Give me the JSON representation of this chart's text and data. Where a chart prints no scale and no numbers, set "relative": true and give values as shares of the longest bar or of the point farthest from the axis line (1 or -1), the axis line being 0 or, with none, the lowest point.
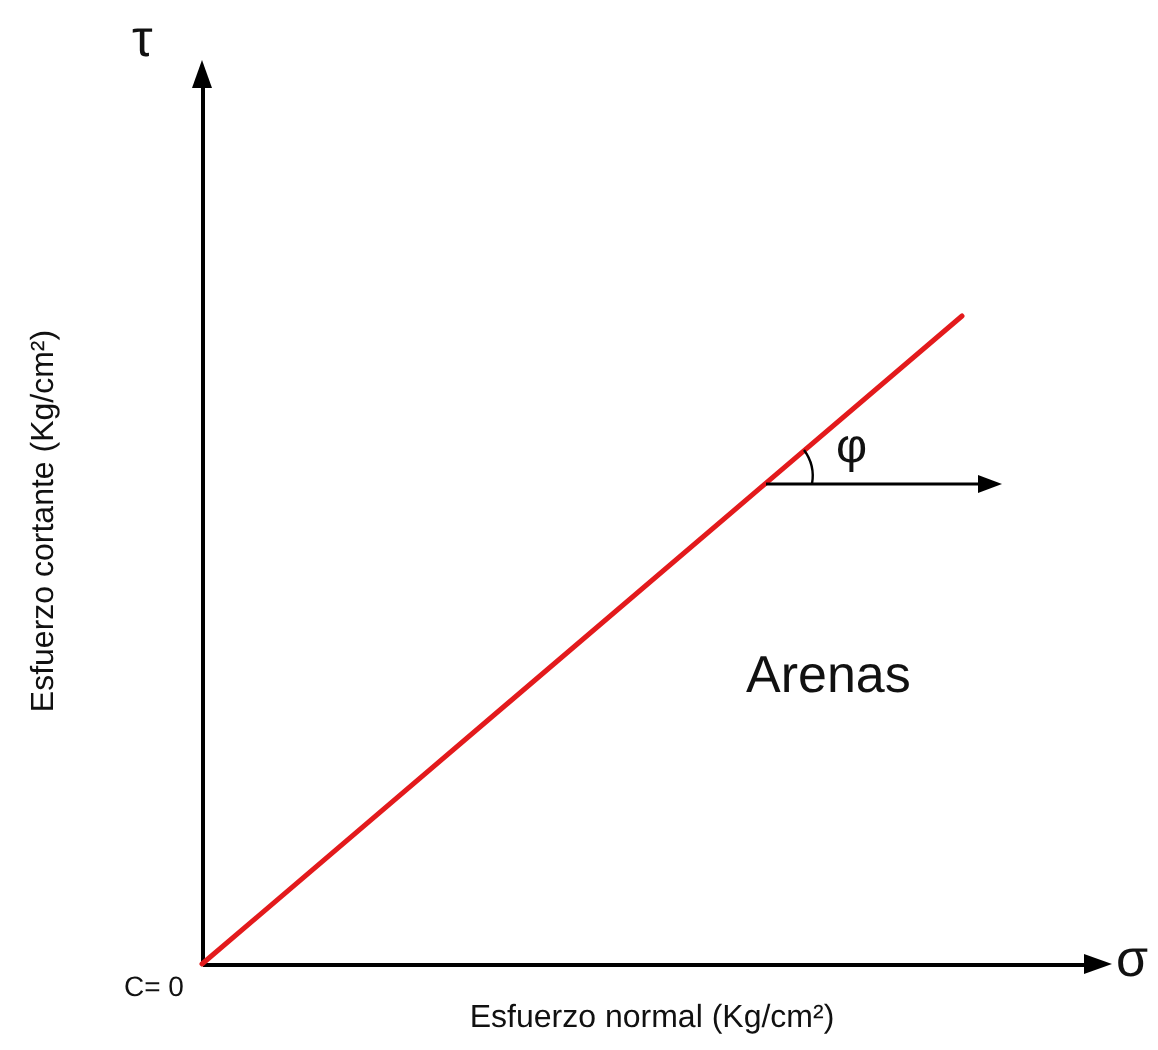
{
  "chart_data": {
    "type": "line",
    "relative": true,
    "xlabel": "Esfuerzo normal (Kg/cm²)",
    "ylabel": "Esfuerzo cortante  (Kg/cm²)",
    "categories": [
      null,
      null
    ],
    "grid": false,
    "legend": false,
    "series": [
      {
        "color": "#e31a1c",
        "values": [
          0,
          1
        ]
      }
    ],
    "annotations": [
      "τ",
      "σ",
      "C= 0",
      "φ",
      "Arenas"
    ]
  }
}
